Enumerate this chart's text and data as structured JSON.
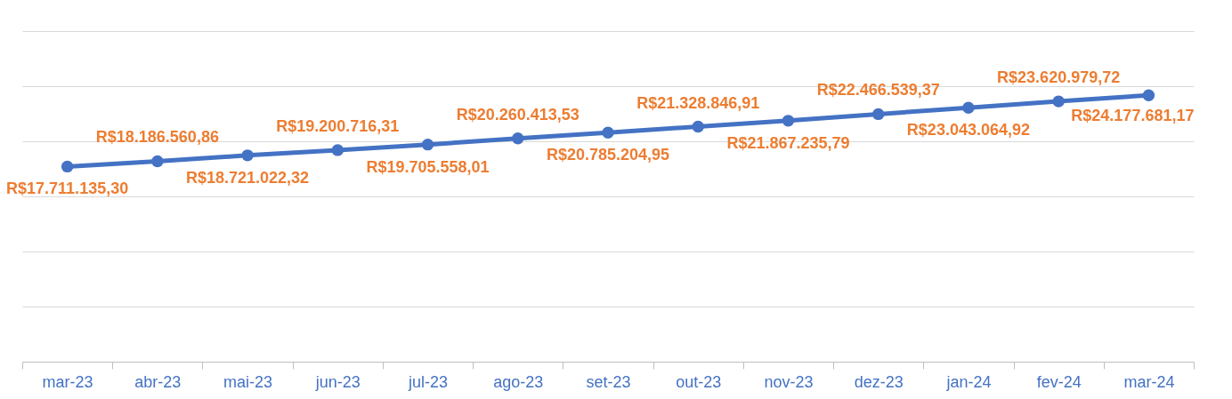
{
  "chart_data": {
    "type": "line",
    "categories": [
      "mar-23",
      "abr-23",
      "mai-23",
      "jun-23",
      "jul-23",
      "ago-23",
      "set-23",
      "out-23",
      "nov-23",
      "dez-23",
      "jan-24",
      "fev-24",
      "mar-24"
    ],
    "series": [
      {
        "color": "#4472c4",
        "values": [
          17711135.3,
          18186560.86,
          18721022.32,
          19200716.31,
          19705558.01,
          20260413.53,
          20785204.95,
          21328846.91,
          21867235.79,
          22466539.37,
          23043064.92,
          23620979.72,
          24177681.17
        ],
        "value_labels": [
          "R$17.711.135,30",
          "R$18.186.560,86",
          "R$18.721.022,32",
          "R$19.200.716,31",
          "R$19.705.558,01",
          "R$20.260.413,53",
          "R$20.785.204,95",
          "R$21.328.846,91",
          "R$21.867.235,79",
          "R$22.466.539,37",
          "R$23.043.064,92",
          "R$23.620.979,72",
          "R$24.177.681,17"
        ]
      }
    ],
    "ylim": [
      0,
      30000000
    ],
    "yticks": [
      {
        "value": 0,
        "label": null
      },
      {
        "value": 5000000,
        "label": null
      },
      {
        "value": 10000000,
        "label": null
      },
      {
        "value": 15000000,
        "label": null
      },
      {
        "value": 20000000,
        "label": null
      },
      {
        "value": 25000000,
        "label": null
      },
      {
        "value": 30000000,
        "label": null
      }
    ],
    "grid": "y",
    "tick_labels": "x",
    "marker": "circle",
    "line_style": "solid"
  }
}
